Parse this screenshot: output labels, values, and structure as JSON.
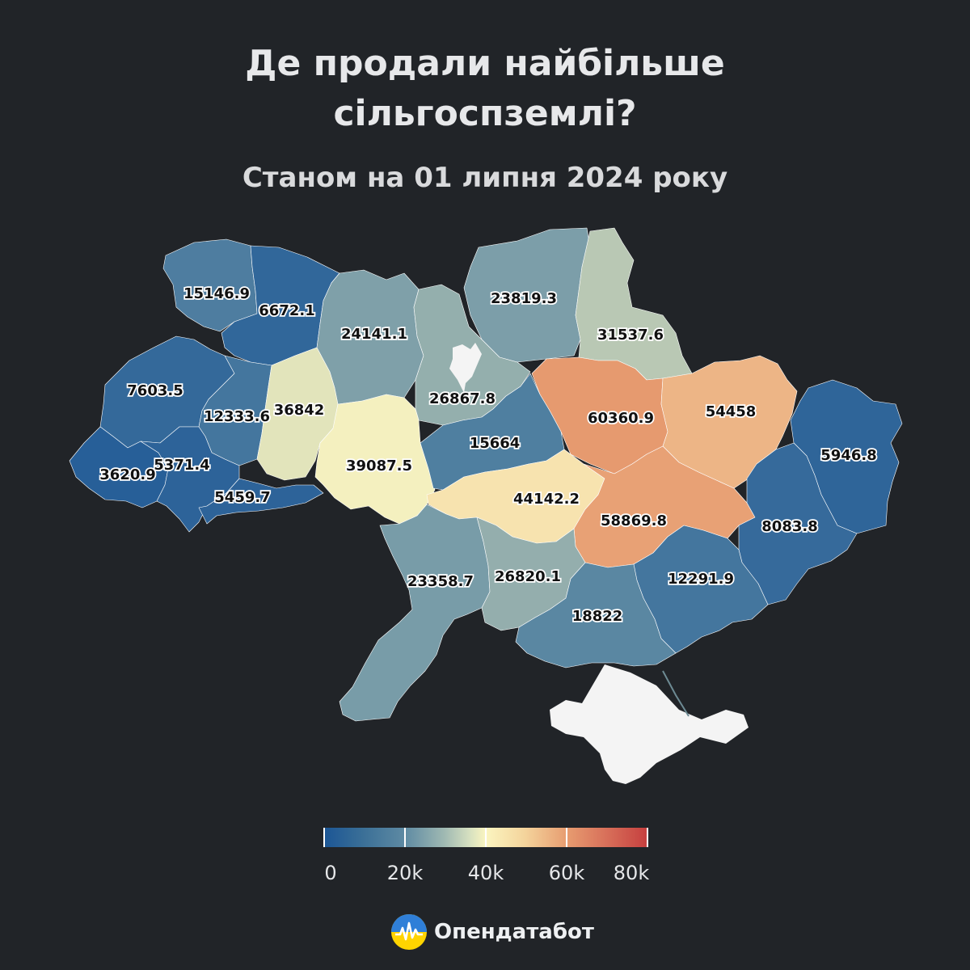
{
  "title": {
    "line1": "Де продали найбільше",
    "line2": "сільгоспземлі?"
  },
  "subtitle": "Станом на 01 липня 2024 року",
  "regions": [
    {
      "label": "15146.9",
      "value": 15146.9
    },
    {
      "label": "6672.1",
      "value": 6672.1
    },
    {
      "label": "24141.1",
      "value": 24141.1
    },
    {
      "label": "23819.3",
      "value": 23819.3
    },
    {
      "label": "31537.6",
      "value": 31537.6
    },
    {
      "label": "7603.5",
      "value": 7603.5
    },
    {
      "label": "12333.6",
      "value": 12333.6
    },
    {
      "label": "36842",
      "value": 36842
    },
    {
      "label": "26867.8",
      "value": 26867.8
    },
    {
      "label": "60360.9",
      "value": 60360.9
    },
    {
      "label": "54458",
      "value": 54458
    },
    {
      "label": "5946.8",
      "value": 5946.8
    },
    {
      "label": "3620.9",
      "value": 3620.9
    },
    {
      "label": "5371.4",
      "value": 5371.4
    },
    {
      "label": "39087.5",
      "value": 39087.5
    },
    {
      "label": "15664",
      "value": 15664
    },
    {
      "label": "5459.7",
      "value": 5459.7
    },
    {
      "label": "44142.2",
      "value": 44142.2
    },
    {
      "label": "58869.8",
      "value": 58869.8
    },
    {
      "label": "8083.8",
      "value": 8083.8
    },
    {
      "label": "23358.7",
      "value": 23358.7
    },
    {
      "label": "26820.1",
      "value": 26820.1
    },
    {
      "label": "12291.9",
      "value": 12291.9
    },
    {
      "label": "18822",
      "value": 18822
    }
  ],
  "no_data_color": "#f4f4f4",
  "legend": {
    "min": 0,
    "max": 80000,
    "ticks": [
      "0",
      "20k",
      "40k",
      "60k",
      "80k"
    ],
    "colors": [
      "#1b5595",
      "#5e8aa3",
      "#fbf5c0",
      "#e79c70",
      "#c53e3e"
    ]
  },
  "brand": "Опендатабот"
}
